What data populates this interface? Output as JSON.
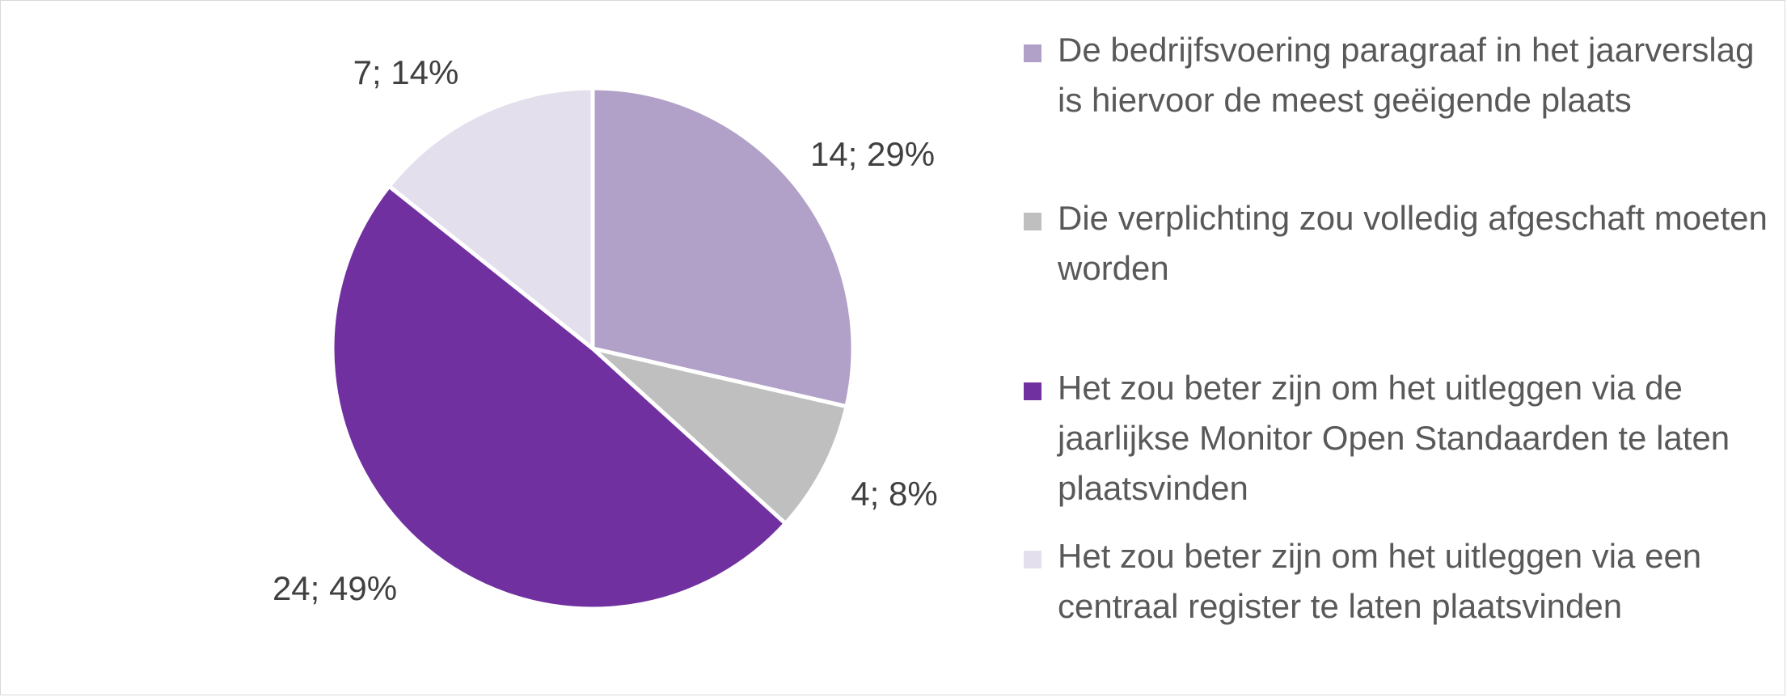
{
  "chart_data": {
    "type": "pie",
    "slices": [
      {
        "label": "De bedrijfsvoering paragraaf in het jaarverslag is hiervoor de meest geëigende plaats",
        "value": 14,
        "percent": 29,
        "data_label": "14; 29%",
        "color": "#B1A0C7"
      },
      {
        "label": "Die verplichting zou volledig afgeschaft moeten worden",
        "value": 4,
        "percent": 8,
        "data_label": "4; 8%",
        "color": "#BFBFBF"
      },
      {
        "label": "Het zou beter zijn om het uitleggen via de jaarlijkse Monitor Open Standaarden te laten plaatsvinden",
        "value": 24,
        "percent": 49,
        "data_label": "24; 49%",
        "color": "#7030A0"
      },
      {
        "label": "Het zou beter zijn om het uitleggen via een centraal register te laten plaatsvinden",
        "value": 7,
        "percent": 14,
        "data_label": "7; 14%",
        "color": "#E4DFEC"
      }
    ],
    "legend_position": "right",
    "start_angle": "12 o'clock",
    "direction": "clockwise"
  },
  "legend": {
    "items": [
      {
        "label": "De bedrijfsvoering paragraaf in het jaarverslag is hiervoor de meest geëigende plaats",
        "color": "#B1A0C7"
      },
      {
        "label": "Die verplichting zou volledig afgeschaft moeten worden",
        "color": "#BFBFBF"
      },
      {
        "label": "Het zou beter zijn om het uitleggen via de jaarlijkse Monitor Open Standaarden te laten plaatsvinden",
        "color": "#7030A0"
      },
      {
        "label": "Het zou beter zijn om het uitleggen via een centraal register te laten plaatsvinden",
        "color": "#E4DFEC"
      }
    ]
  }
}
